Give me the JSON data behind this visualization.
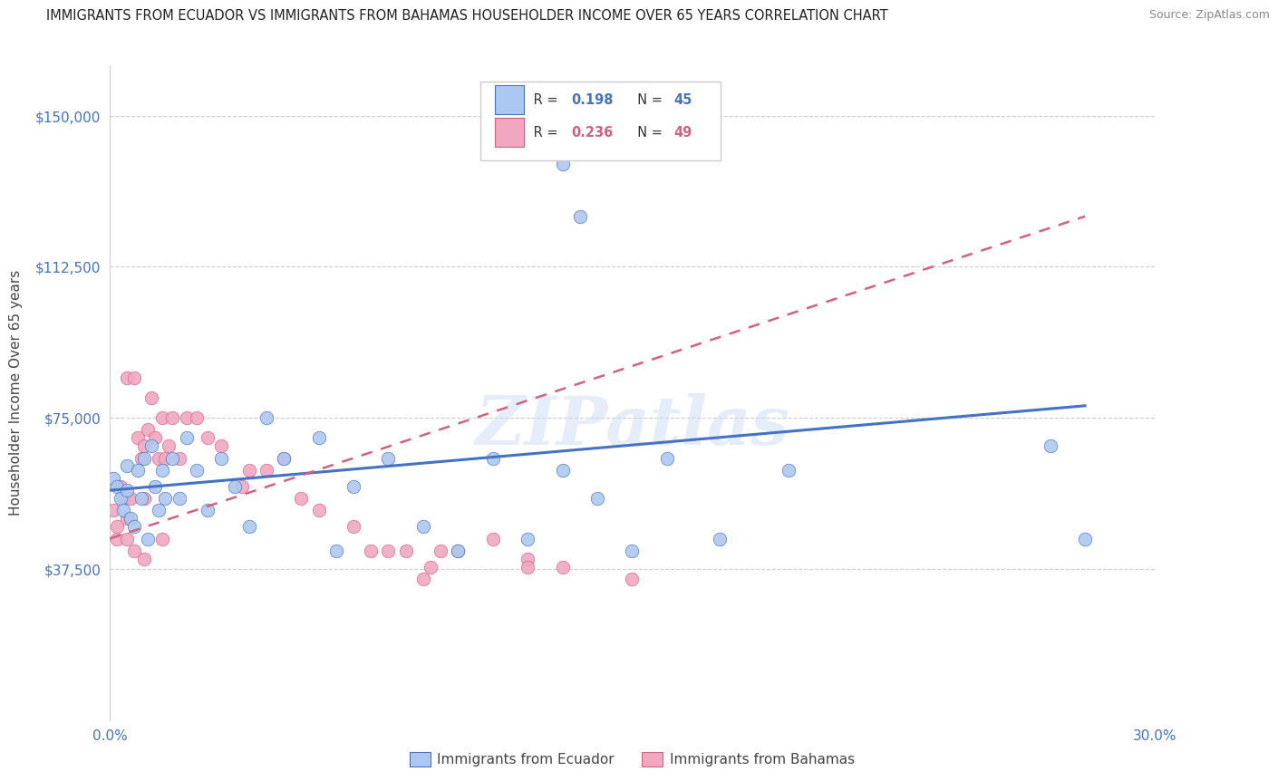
{
  "title": "IMMIGRANTS FROM ECUADOR VS IMMIGRANTS FROM BAHAMAS HOUSEHOLDER INCOME OVER 65 YEARS CORRELATION CHART",
  "source": "Source: ZipAtlas.com",
  "ylabel": "Householder Income Over 65 years",
  "xlim": [
    0.0,
    0.3
  ],
  "ylim": [
    0,
    162500
  ],
  "yticks": [
    0,
    37500,
    75000,
    112500,
    150000
  ],
  "ytick_labels": [
    "",
    "$37,500",
    "$75,000",
    "$112,500",
    "$150,000"
  ],
  "xticks": [
    0.0,
    0.05,
    0.1,
    0.15,
    0.2,
    0.25,
    0.3
  ],
  "xtick_labels": [
    "0.0%",
    "",
    "",
    "",
    "",
    "",
    "30.0%"
  ],
  "ecuador_color": "#adc8f0",
  "bahamas_color": "#f0a8c0",
  "ecuador_line_color": "#4472c4",
  "bahamas_line_color": "#d46080",
  "R_ecuador": "0.198",
  "N_ecuador": "45",
  "R_bahamas": "0.236",
  "N_bahamas": "49",
  "legend_label_ecuador": "Immigrants from Ecuador",
  "legend_label_bahamas": "Immigrants from Bahamas",
  "watermark": "ZIPatlas",
  "title_color": "#222222",
  "tick_label_color": "#4472c4",
  "ecuador_x": [
    0.001,
    0.002,
    0.003,
    0.004,
    0.005,
    0.005,
    0.006,
    0.007,
    0.008,
    0.009,
    0.01,
    0.011,
    0.012,
    0.013,
    0.014,
    0.015,
    0.016,
    0.018,
    0.02,
    0.022,
    0.025,
    0.028,
    0.032,
    0.036,
    0.04,
    0.045,
    0.05,
    0.06,
    0.065,
    0.07,
    0.08,
    0.09,
    0.1,
    0.11,
    0.12,
    0.13,
    0.14,
    0.15,
    0.16,
    0.175,
    0.13,
    0.135,
    0.195,
    0.27,
    0.28
  ],
  "ecuador_y": [
    60000,
    58000,
    55000,
    52000,
    57000,
    63000,
    50000,
    48000,
    62000,
    55000,
    65000,
    45000,
    68000,
    58000,
    52000,
    62000,
    55000,
    65000,
    55000,
    70000,
    62000,
    52000,
    65000,
    58000,
    48000,
    75000,
    65000,
    70000,
    42000,
    58000,
    65000,
    48000,
    42000,
    65000,
    45000,
    62000,
    55000,
    42000,
    65000,
    45000,
    138000,
    125000,
    62000,
    68000,
    45000
  ],
  "bahamas_x": [
    0.001,
    0.002,
    0.002,
    0.003,
    0.004,
    0.005,
    0.005,
    0.006,
    0.007,
    0.007,
    0.008,
    0.009,
    0.01,
    0.01,
    0.011,
    0.012,
    0.013,
    0.014,
    0.015,
    0.016,
    0.017,
    0.018,
    0.02,
    0.022,
    0.025,
    0.028,
    0.032,
    0.038,
    0.04,
    0.045,
    0.05,
    0.055,
    0.06,
    0.07,
    0.08,
    0.09,
    0.1,
    0.11,
    0.12,
    0.13,
    0.005,
    0.01,
    0.015,
    0.085,
    0.092,
    0.12,
    0.15,
    0.075,
    0.095
  ],
  "bahamas_y": [
    52000,
    45000,
    48000,
    58000,
    55000,
    50000,
    85000,
    55000,
    85000,
    42000,
    70000,
    65000,
    68000,
    55000,
    72000,
    80000,
    70000,
    65000,
    75000,
    65000,
    68000,
    75000,
    65000,
    75000,
    75000,
    70000,
    68000,
    58000,
    62000,
    62000,
    65000,
    55000,
    52000,
    48000,
    42000,
    35000,
    42000,
    45000,
    40000,
    38000,
    45000,
    40000,
    45000,
    42000,
    38000,
    38000,
    35000,
    42000,
    42000
  ]
}
